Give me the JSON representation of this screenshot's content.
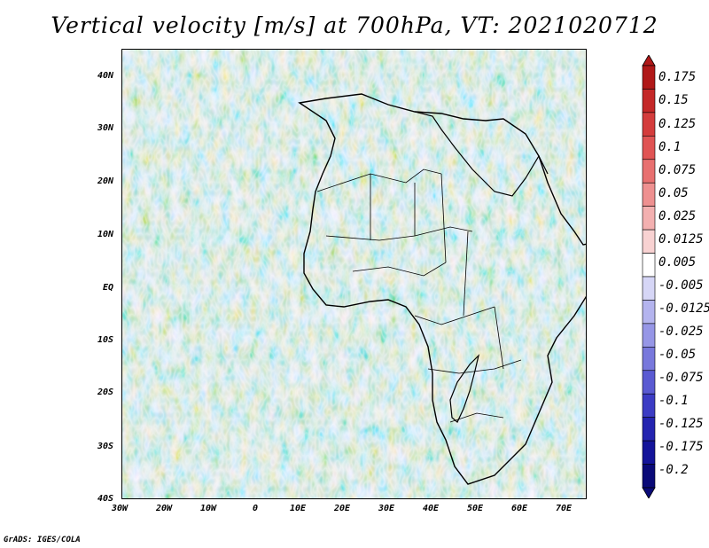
{
  "title": "Vertical velocity [m/s] at 700hPa, VT: 2021020712",
  "credit": "GrADS: IGES/COLA",
  "map": {
    "x_labels": [
      "30W",
      "20W",
      "10W",
      "0",
      "10E",
      "20E",
      "30E",
      "40E",
      "50E",
      "60E",
      "70E"
    ],
    "y_labels": [
      "40N",
      "30N",
      "20N",
      "10N",
      "EQ",
      "10S",
      "20S",
      "30S",
      "40S"
    ],
    "lon_range": [
      -30,
      75
    ],
    "lat_range": [
      -40,
      45
    ]
  },
  "colorbar": {
    "levels": [
      "0.175",
      "0.15",
      "0.125",
      "0.1",
      "0.075",
      "0.05",
      "0.025",
      "0.0125",
      "0.005",
      "-0.005",
      "-0.0125",
      "-0.025",
      "-0.05",
      "-0.075",
      "-0.1",
      "-0.125",
      "-0.175",
      "-0.2"
    ],
    "colors": [
      "#b01818",
      "#c42828",
      "#d43c3c",
      "#e05454",
      "#e87070",
      "#ee9090",
      "#f3b0b0",
      "#f8d2d2",
      "#ffffff",
      "#d6d6f6",
      "#b4b4ee",
      "#9696e6",
      "#7878dc",
      "#5a5ad2",
      "#3c3cc4",
      "#2424b0",
      "#14149a",
      "#0a0a78"
    ]
  }
}
